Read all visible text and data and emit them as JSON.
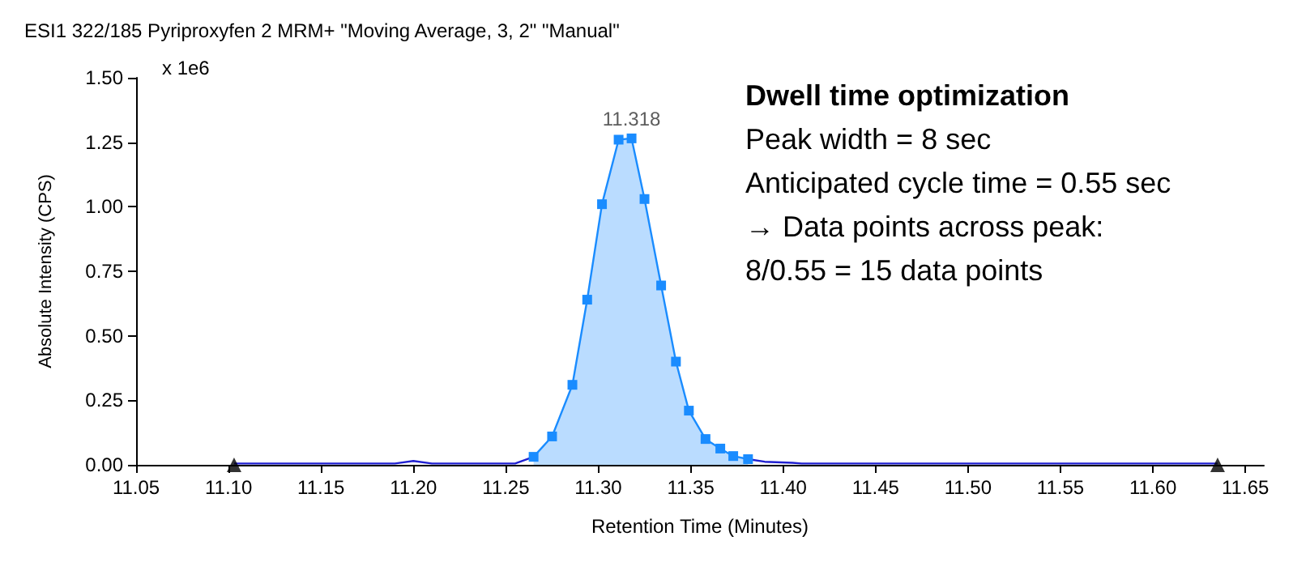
{
  "chart_data": {
    "type": "line",
    "title": "ESI1 322/185 Pyriproxyfen 2 MRM+ \"Moving Average, 3, 2\" \"Manual\"",
    "xlabel": "Retention Time (Minutes)",
    "ylabel": "Absolute Intensity (CPS)",
    "xlim": [
      11.05,
      11.66
    ],
    "xticks": [
      {
        "value": 11.05,
        "label": "11.05"
      },
      {
        "value": 11.1,
        "label": "11.10"
      },
      {
        "value": 11.15,
        "label": "11.15"
      },
      {
        "value": 11.2,
        "label": "11.20"
      },
      {
        "value": 11.25,
        "label": "11.25"
      },
      {
        "value": 11.3,
        "label": "11.30"
      },
      {
        "value": 11.35,
        "label": "11.35"
      },
      {
        "value": 11.4,
        "label": "11.40"
      },
      {
        "value": 11.45,
        "label": "11.45"
      },
      {
        "value": 11.5,
        "label": "11.50"
      },
      {
        "value": 11.55,
        "label": "11.55"
      },
      {
        "value": 11.6,
        "label": "11.60"
      },
      {
        "value": 11.65,
        "label": "11.65"
      }
    ],
    "ylim": [
      0,
      1.5
    ],
    "yticks": [
      {
        "value": 0,
        "label": "0.00"
      },
      {
        "value": 0.25,
        "label": "0.25"
      },
      {
        "value": 0.5,
        "label": "0.50"
      },
      {
        "value": 0.75,
        "label": "0.75"
      },
      {
        "value": 1,
        "label": "1.00"
      },
      {
        "value": 1.25,
        "label": "1.25"
      },
      {
        "value": 1.5,
        "label": "1.50"
      }
    ],
    "grid": false,
    "series": [
      {
        "color": "#1f1fd0",
        "marker": "none",
        "x": [
          11.103,
          11.15,
          11.19,
          11.2,
          11.21,
          11.255,
          11.265
        ],
        "values": [
          0.005,
          0.005,
          0.005,
          0.015,
          0.005,
          0.005,
          0.031
        ]
      },
      {
        "color": "#1f1fd0",
        "marker": "none",
        "x": [
          11.381,
          11.39,
          11.405,
          11.41,
          11.635
        ],
        "values": [
          0.022,
          0.012,
          0.008,
          0.005,
          0.005
        ]
      },
      {
        "type": "area",
        "color": "#1a8cff",
        "marker": "square",
        "x": [
          11.265,
          11.275,
          11.286,
          11.294,
          11.302,
          11.311,
          11.318,
          11.325,
          11.334,
          11.342,
          11.349,
          11.358,
          11.366,
          11.373,
          11.381
        ],
        "values": [
          0.031,
          0.11,
          0.31,
          0.64,
          1.01,
          1.26,
          1.265,
          1.03,
          0.695,
          0.4,
          0.21,
          0.1,
          0.063,
          0.034,
          0.022
        ]
      },
      {
        "type": "scatter",
        "color": "#000000",
        "marker": "triangle",
        "x": [
          11.103,
          11.635
        ],
        "values": [
          0,
          0
        ]
      }
    ],
    "annotations": [
      {
        "text": "11.318",
        "x": 11.318,
        "y": 1.265
      },
      "x 1e6",
      "Dwell time optimization",
      "Peak width = 8 sec",
      "Anticipated cycle time = 0.55 sec",
      "→ Data points across peak:",
      "8/0.55 = 15 data points"
    ]
  }
}
